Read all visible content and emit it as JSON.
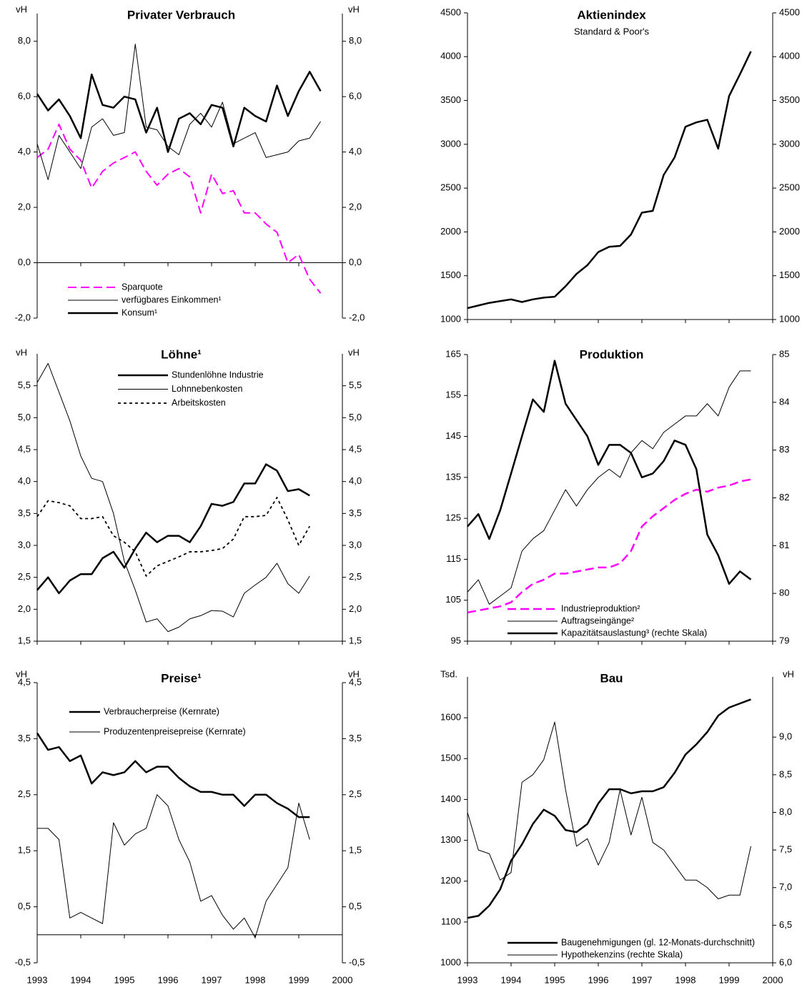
{
  "chart_data": [
    {
      "type": "line",
      "title": "Privater Verbrauch",
      "ylabel": "vH",
      "mirror_y": true,
      "x": [
        1993,
        1993.25,
        1993.5,
        1993.75,
        1994,
        1994.25,
        1994.5,
        1994.75,
        1995,
        1995.25,
        1995.5,
        1995.75,
        1996,
        1996.25,
        1996.5,
        1996.75,
        1997,
        1997.25,
        1997.5,
        1997.75,
        1998,
        1998.25,
        1998.5,
        1998.75,
        1999,
        1999.25,
        1999.5
      ],
      "xlim": [
        1993,
        2000
      ],
      "xticks": [
        1993,
        1994,
        1995,
        1996,
        1997,
        1998,
        1999,
        2000
      ],
      "xtick_labels": false,
      "ylim": [
        -2,
        9
      ],
      "yticks": [
        {
          "value": -2,
          "label": "-2,0"
        },
        {
          "value": 0,
          "label": "0,0"
        },
        {
          "value": 2,
          "label": "2,0"
        },
        {
          "value": 4,
          "label": "4,0"
        },
        {
          "value": 6,
          "label": "6,0"
        },
        {
          "value": 8,
          "label": "8,0"
        }
      ],
      "legend": "lower left",
      "series": [
        {
          "name": "Sparquote",
          "color": "#ff00ff",
          "line_width": 2,
          "line_style": "dashed",
          "values": [
            3.8,
            4.1,
            5.0,
            4.1,
            3.7,
            2.7,
            3.3,
            3.6,
            3.8,
            4.0,
            3.3,
            2.8,
            3.2,
            3.4,
            3.1,
            1.8,
            3.2,
            2.5,
            2.6,
            1.8,
            1.8,
            1.4,
            1.1,
            0.0,
            0.3,
            -0.6,
            -1.1
          ]
        },
        {
          "name": "verfügbares Einkommen¹",
          "color": "#000000",
          "line_width": 1,
          "line_style": "solid",
          "values": [
            4.3,
            3.0,
            4.6,
            4.0,
            3.4,
            4.9,
            5.2,
            4.6,
            4.7,
            7.9,
            4.9,
            4.8,
            4.2,
            3.9,
            5.0,
            5.4,
            4.9,
            5.8,
            4.3,
            4.5,
            4.7,
            3.8,
            3.9,
            4.0,
            4.4,
            4.5,
            5.1
          ]
        },
        {
          "name": "Konsum¹",
          "color": "#000000",
          "line_width": 2.5,
          "line_style": "solid",
          "values": [
            6.1,
            5.5,
            5.9,
            5.3,
            4.5,
            6.8,
            5.7,
            5.6,
            6.0,
            5.9,
            4.7,
            5.6,
            4.0,
            5.2,
            5.4,
            5.0,
            5.7,
            5.6,
            4.2,
            5.6,
            5.3,
            5.1,
            6.4,
            5.3,
            6.2,
            6.9,
            6.2
          ]
        }
      ]
    },
    {
      "type": "line",
      "title": "Aktienindex",
      "subtitle": "Standard & Poor's",
      "mirror_y": true,
      "x": [
        1993,
        1993.25,
        1993.5,
        1993.75,
        1994,
        1994.25,
        1994.5,
        1994.75,
        1995,
        1995.25,
        1995.5,
        1995.75,
        1996,
        1996.25,
        1996.5,
        1996.75,
        1997,
        1997.25,
        1997.5,
        1997.75,
        1998,
        1998.25,
        1998.5,
        1998.75,
        1999,
        1999.25,
        1999.5
      ],
      "xlim": [
        1993,
        2000
      ],
      "xticks": [
        1993,
        1994,
        1995,
        1996,
        1997,
        1998,
        1999,
        2000
      ],
      "xtick_labels": false,
      "ylim": [
        1000,
        4500
      ],
      "yticks": [
        1000,
        1500,
        2000,
        2500,
        3000,
        3500,
        4000,
        4500
      ],
      "series": [
        {
          "color": "#000000",
          "line_width": 2.5,
          "line_style": "solid",
          "values": [
            1130,
            1160,
            1190,
            1210,
            1230,
            1200,
            1230,
            1250,
            1260,
            1380,
            1520,
            1620,
            1770,
            1830,
            1840,
            1970,
            2220,
            2240,
            2650,
            2850,
            3200,
            3250,
            3280,
            2950,
            3550,
            3800,
            4060
          ]
        }
      ]
    },
    {
      "type": "line",
      "title": "Löhne¹",
      "ylabel": "vH",
      "mirror_y": true,
      "x": [
        1993,
        1993.25,
        1993.5,
        1993.75,
        1994,
        1994.25,
        1994.5,
        1994.75,
        1995,
        1995.25,
        1995.5,
        1995.75,
        1996,
        1996.25,
        1996.5,
        1996.75,
        1997,
        1997.25,
        1997.5,
        1997.75,
        1998,
        1998.25,
        1998.5,
        1998.75,
        1999,
        1999.25,
        1999.5
      ],
      "xlim": [
        1993,
        2000
      ],
      "xticks": [
        1993,
        1994,
        1995,
        1996,
        1997,
        1998,
        1999,
        2000
      ],
      "xtick_labels": false,
      "ylim": [
        1.5,
        6.0
      ],
      "yticks": [
        {
          "value": 1.5,
          "label": "1,5"
        },
        {
          "value": 2.0,
          "label": "2,0"
        },
        {
          "value": 2.5,
          "label": "2,5"
        },
        {
          "value": 3.0,
          "label": "3,0"
        },
        {
          "value": 3.5,
          "label": "3,5"
        },
        {
          "value": 4.0,
          "label": "4,0"
        },
        {
          "value": 4.5,
          "label": "4,5"
        },
        {
          "value": 5.0,
          "label": "5,0"
        },
        {
          "value": 5.5,
          "label": "5,5"
        }
      ],
      "legend": "upper center",
      "series": [
        {
          "name": "Stundenlöhne Industrie",
          "color": "#000000",
          "line_width": 2.5,
          "line_style": "solid",
          "values": [
            2.3,
            2.5,
            2.25,
            2.45,
            2.55,
            2.55,
            2.8,
            2.9,
            2.65,
            2.95,
            3.2,
            3.05,
            3.15,
            3.15,
            3.05,
            3.3,
            3.65,
            3.62,
            3.68,
            3.97,
            3.97,
            4.27,
            4.17,
            3.85,
            3.88,
            3.78,
            null
          ]
        },
        {
          "name": "Lohnnebenkosten",
          "color": "#000000",
          "line_width": 1,
          "line_style": "solid",
          "values": [
            5.55,
            5.85,
            5.4,
            4.95,
            4.4,
            4.05,
            4.0,
            3.5,
            2.75,
            2.3,
            1.8,
            1.85,
            1.65,
            1.72,
            1.85,
            1.9,
            1.98,
            1.97,
            1.88,
            2.25,
            2.38,
            2.5,
            2.72,
            2.4,
            2.25,
            2.52,
            null
          ]
        },
        {
          "name": "Arbeitskosten",
          "color": "#000000",
          "line_width": 1.8,
          "line_style": "short-dashed",
          "values": [
            3.45,
            3.7,
            3.67,
            3.62,
            3.42,
            3.42,
            3.45,
            3.15,
            3.05,
            2.9,
            2.52,
            2.68,
            2.75,
            2.82,
            2.9,
            2.9,
            2.92,
            2.95,
            3.1,
            3.45,
            3.45,
            3.47,
            3.75,
            3.4,
            3.0,
            3.3,
            null
          ]
        }
      ]
    },
    {
      "type": "line",
      "title": "Produktion",
      "x": [
        1993,
        1993.25,
        1993.5,
        1993.75,
        1994,
        1994.25,
        1994.5,
        1994.75,
        1995,
        1995.25,
        1995.5,
        1995.75,
        1996,
        1996.25,
        1996.5,
        1996.75,
        1997,
        1997.25,
        1997.5,
        1997.75,
        1998,
        1998.25,
        1998.5,
        1998.75,
        1999,
        1999.25,
        1999.5
      ],
      "xlim": [
        1993,
        2000
      ],
      "xticks": [
        1993,
        1994,
        1995,
        1996,
        1997,
        1998,
        1999,
        2000
      ],
      "xtick_labels": false,
      "ylim": [
        95,
        165
      ],
      "yticks": [
        95,
        105,
        115,
        125,
        135,
        145,
        155,
        165
      ],
      "y2lim": [
        79,
        85
      ],
      "y2ticks": [
        79,
        80,
        81,
        82,
        83,
        84,
        85
      ],
      "legend": "lower center",
      "series": [
        {
          "name": "Industrieproduktion²",
          "color": "#ff00ff",
          "line_width": 2.5,
          "line_style": "dashed",
          "values": [
            102,
            102.5,
            103,
            103.5,
            104.5,
            107,
            109,
            110,
            111.5,
            111.5,
            112,
            112.5,
            113,
            113,
            114,
            117,
            123,
            125.5,
            127.5,
            129.5,
            131,
            132,
            131.5,
            132.5,
            133,
            134,
            134.5
          ]
        },
        {
          "name": "Auftragseingänge²",
          "color": "#000000",
          "line_width": 1,
          "line_style": "solid",
          "values": [
            107,
            110,
            104,
            106,
            108,
            117,
            120,
            122,
            127,
            132,
            128,
            132,
            135,
            137,
            135,
            141,
            144,
            142,
            146,
            148,
            150,
            150,
            153,
            150,
            157,
            161,
            161
          ]
        },
        {
          "name": "Kapazitätsauslastung³ (rechte Skala)",
          "color": "#000000",
          "line_width": 2.5,
          "line_style": "solid",
          "axis": "y2",
          "values": [
            81.4,
            81.66,
            81.14,
            81.74,
            82.51,
            83.29,
            84.06,
            83.8,
            84.87,
            83.97,
            83.63,
            83.29,
            82.69,
            83.11,
            83.11,
            82.94,
            82.43,
            82.51,
            82.77,
            83.2,
            83.11,
            82.6,
            81.23,
            80.8,
            80.2,
            80.46,
            80.29
          ]
        }
      ]
    },
    {
      "type": "line",
      "title": "Preise¹",
      "ylabel": "vH",
      "mirror_y": true,
      "x": [
        1993,
        1993.25,
        1993.5,
        1993.75,
        1994,
        1994.25,
        1994.5,
        1994.75,
        1995,
        1995.25,
        1995.5,
        1995.75,
        1996,
        1996.25,
        1996.5,
        1996.75,
        1997,
        1997.25,
        1997.5,
        1997.75,
        1998,
        1998.25,
        1998.5,
        1998.75,
        1999,
        1999.25,
        1999.5
      ],
      "xlim": [
        1993,
        2000
      ],
      "xticks": [
        1993,
        1994,
        1995,
        1996,
        1997,
        1998,
        1999,
        2000
      ],
      "xtick_labels": true,
      "ylim": [
        -0.5,
        4.5
      ],
      "yticks": [
        {
          "value": -0.5,
          "label": "-0,5"
        },
        {
          "value": 0.5,
          "label": "0,5"
        },
        {
          "value": 1.5,
          "label": "1,5"
        },
        {
          "value": 2.5,
          "label": "2,5"
        },
        {
          "value": 3.5,
          "label": "3,5"
        },
        {
          "value": 4.5,
          "label": "4,5"
        }
      ],
      "legend": "upper left",
      "series": [
        {
          "name": "Verbraucherpreise (Kernrate)",
          "color": "#000000",
          "line_width": 2.5,
          "line_style": "solid",
          "values": [
            3.6,
            3.3,
            3.35,
            3.1,
            3.2,
            2.7,
            2.9,
            2.85,
            2.9,
            3.1,
            2.9,
            3.0,
            3.0,
            2.8,
            2.65,
            2.55,
            2.55,
            2.5,
            2.5,
            2.3,
            2.5,
            2.5,
            2.35,
            2.25,
            2.1,
            2.1,
            null
          ]
        },
        {
          "name": "Produzentenpreisepreise (Kernrate)",
          "color": "#000000",
          "line_width": 1,
          "line_style": "solid",
          "values": [
            1.9,
            1.9,
            1.7,
            0.3,
            0.4,
            0.3,
            0.2,
            2.0,
            1.6,
            1.8,
            1.9,
            2.5,
            2.3,
            1.7,
            1.3,
            0.6,
            0.7,
            0.35,
            0.1,
            0.3,
            -0.05,
            0.6,
            0.9,
            1.2,
            2.35,
            1.7,
            null
          ]
        }
      ]
    },
    {
      "type": "line",
      "title": "Bau",
      "ylabel": "Tsd.",
      "y2label": "vH",
      "x": [
        1993,
        1993.25,
        1993.5,
        1993.75,
        1994,
        1994.25,
        1994.5,
        1994.75,
        1995,
        1995.25,
        1995.5,
        1995.75,
        1996,
        1996.25,
        1996.5,
        1996.75,
        1997,
        1997.25,
        1997.5,
        1997.75,
        1998,
        1998.25,
        1998.5,
        1998.75,
        1999,
        1999.25,
        1999.5
      ],
      "xlim": [
        1993,
        2000
      ],
      "xticks": [
        1993,
        1994,
        1995,
        1996,
        1997,
        1998,
        1999,
        2000
      ],
      "xtick_labels": true,
      "ylim": [
        1000,
        1700
      ],
      "yticks": [
        1000,
        1100,
        1200,
        1300,
        1400,
        1500,
        1600
      ],
      "y2lim": [
        6.0,
        9.8
      ],
      "y2ticks": [
        {
          "value": 6.0,
          "label": "6,0"
        },
        {
          "value": 6.5,
          "label": "6,5"
        },
        {
          "value": 7.0,
          "label": "7,0"
        },
        {
          "value": 7.5,
          "label": "7,5"
        },
        {
          "value": 8.0,
          "label": "8,0"
        },
        {
          "value": 8.5,
          "label": "8,5"
        },
        {
          "value": 9.0,
          "label": "9,0"
        }
      ],
      "legend": "lower center",
      "series": [
        {
          "name": "Baugenehmigungen (gl. 12-Monats-durchschnitt)",
          "color": "#000000",
          "line_width": 2.5,
          "line_style": "solid",
          "values": [
            1110,
            1115,
            1140,
            1180,
            1250,
            1290,
            1340,
            1375,
            1360,
            1325,
            1320,
            1340,
            1390,
            1425,
            1425,
            1415,
            1420,
            1420,
            1430,
            1465,
            1510,
            1535,
            1565,
            1605,
            1625,
            1635,
            1645
          ]
        },
        {
          "name": "Hypothekenzins (rechte Skala)",
          "color": "#000000",
          "line_width": 1,
          "line_style": "solid",
          "axis": "y2",
          "values": [
            8.0,
            7.5,
            7.45,
            7.1,
            7.2,
            8.4,
            8.5,
            8.7,
            9.2,
            8.3,
            7.55,
            7.65,
            7.3,
            7.6,
            8.3,
            7.7,
            8.2,
            7.6,
            7.5,
            7.3,
            7.1,
            7.1,
            7.0,
            6.85,
            6.9,
            6.9,
            7.55
          ]
        }
      ]
    }
  ]
}
